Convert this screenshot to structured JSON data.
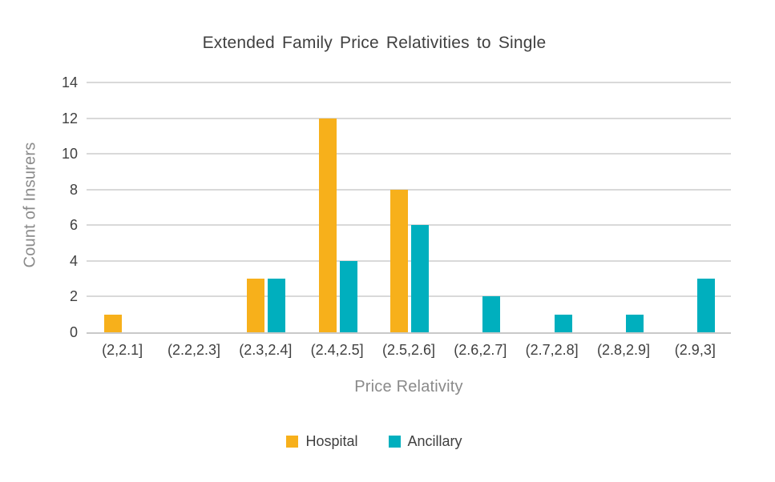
{
  "chart_data": {
    "type": "bar",
    "title": "Extended Family Price Relativities to Single",
    "categories": [
      "(2,2.1]",
      "(2.2,2.3]",
      "(2.3,2.4]",
      "(2.4,2.5]",
      "(2.5,2.6]",
      "(2.6,2.7]",
      "(2.7,2.8]",
      "(2.8,2.9]",
      "(2.9,3]"
    ],
    "series": [
      {
        "name": "Hospital",
        "color": "#F7B01B",
        "values": [
          1,
          0,
          3,
          12,
          8,
          0,
          0,
          0,
          0
        ]
      },
      {
        "name": "Ancillary",
        "color": "#00AFBE",
        "values": [
          0,
          0,
          3,
          4,
          6,
          2,
          1,
          1,
          3
        ]
      }
    ],
    "xlabel": "Price Relativity",
    "ylabel": "Count of Insurers",
    "ylim": [
      0,
      14
    ],
    "yticks": [
      0,
      2,
      4,
      6,
      8,
      10,
      12,
      14
    ],
    "grid": true,
    "legend_position": "bottom"
  },
  "colors": {
    "title_text": "#404040",
    "tick_text": "#404040",
    "axis_title_text": "#8A8A8A",
    "gridline": "#D9D9D9",
    "axis_line": "#C9C9C9",
    "background": "#FFFFFF"
  }
}
